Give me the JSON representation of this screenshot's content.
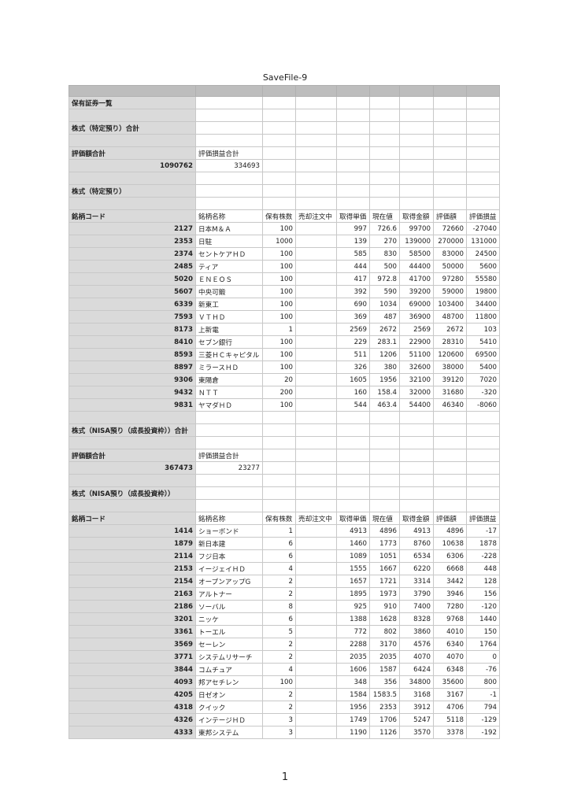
{
  "title": "SaveFile-9",
  "page_number": "1",
  "colors": {
    "header_gray": "#bdbdbd",
    "first_column_gray": "#dadada",
    "grid": "#c8c8c8"
  },
  "column_headers": [
    "銘柄コード",
    "銘柄名称",
    "保有株数",
    "売却注文中",
    "取得単価",
    "現在値",
    "取得金額",
    "評価額",
    "評価損益"
  ],
  "list_title": "保有証券一覧",
  "tokutei": {
    "total_label": "株式（特定預り）合計",
    "value_label": "評価額合計",
    "pl_label": "評価損益合計",
    "value_total": "1090762",
    "pl_total": "334693",
    "section_label": "株式（特定預り）",
    "rows": [
      [
        "2127",
        "日本M＆Ａ",
        "100",
        "",
        "997",
        "726.6",
        "99700",
        "72660",
        "-27040"
      ],
      [
        "2353",
        "日駐",
        "1000",
        "",
        "139",
        "270",
        "139000",
        "270000",
        "131000"
      ],
      [
        "2374",
        "セントケアＨＤ",
        "100",
        "",
        "585",
        "830",
        "58500",
        "83000",
        "24500"
      ],
      [
        "2485",
        "ティア",
        "100",
        "",
        "444",
        "500",
        "44400",
        "50000",
        "5600"
      ],
      [
        "5020",
        "ＥＮＥＯＳ",
        "100",
        "",
        "417",
        "972.8",
        "41700",
        "97280",
        "55580"
      ],
      [
        "5607",
        "中央可鍛",
        "100",
        "",
        "392",
        "590",
        "39200",
        "59000",
        "19800"
      ],
      [
        "6339",
        "新東工",
        "100",
        "",
        "690",
        "1034",
        "69000",
        "103400",
        "34400"
      ],
      [
        "7593",
        "ＶＴＨＤ",
        "100",
        "",
        "369",
        "487",
        "36900",
        "48700",
        "11800"
      ],
      [
        "8173",
        "上新電",
        "1",
        "",
        "2569",
        "2672",
        "2569",
        "2672",
        "103"
      ],
      [
        "8410",
        "セブン銀行",
        "100",
        "",
        "229",
        "283.1",
        "22900",
        "28310",
        "5410"
      ],
      [
        "8593",
        "三菱ＨＣキャピタル",
        "100",
        "",
        "511",
        "1206",
        "51100",
        "120600",
        "69500"
      ],
      [
        "8897",
        "ミラースＨＤ",
        "100",
        "",
        "326",
        "380",
        "32600",
        "38000",
        "5400"
      ],
      [
        "9306",
        "東陽倉",
        "20",
        "",
        "1605",
        "1956",
        "32100",
        "39120",
        "7020"
      ],
      [
        "9432",
        "ＮＴＴ",
        "200",
        "",
        "160",
        "158.4",
        "32000",
        "31680",
        "-320"
      ],
      [
        "9831",
        "ヤマダＨＤ",
        "100",
        "",
        "544",
        "463.4",
        "54400",
        "46340",
        "-8060"
      ]
    ]
  },
  "nisa": {
    "total_label": "株式（NISA預り（成長投資枠））合計",
    "value_label": "評価額合計",
    "pl_label": "評価損益合計",
    "value_total": "367473",
    "pl_total": "23277",
    "section_label": "株式（NISA預り（成長投資枠））",
    "rows": [
      [
        "1414",
        "ショーボンド",
        "1",
        "",
        "4913",
        "4896",
        "4913",
        "4896",
        "-17"
      ],
      [
        "1879",
        "新日本建",
        "6",
        "",
        "1460",
        "1773",
        "8760",
        "10638",
        "1878"
      ],
      [
        "2114",
        "フジ日本",
        "6",
        "",
        "1089",
        "1051",
        "6534",
        "6306",
        "-228"
      ],
      [
        "2153",
        "イージェイＨＤ",
        "4",
        "",
        "1555",
        "1667",
        "6220",
        "6668",
        "448"
      ],
      [
        "2154",
        "オープンアップG",
        "2",
        "",
        "1657",
        "1721",
        "3314",
        "3442",
        "128"
      ],
      [
        "2163",
        "アルトナー",
        "2",
        "",
        "1895",
        "1973",
        "3790",
        "3946",
        "156"
      ],
      [
        "2186",
        "ソーバル",
        "8",
        "",
        "925",
        "910",
        "7400",
        "7280",
        "-120"
      ],
      [
        "3201",
        "ニッケ",
        "6",
        "",
        "1388",
        "1628",
        "8328",
        "9768",
        "1440"
      ],
      [
        "3361",
        "トーエル",
        "5",
        "",
        "772",
        "802",
        "3860",
        "4010",
        "150"
      ],
      [
        "3569",
        "セーレン",
        "2",
        "",
        "2288",
        "3170",
        "4576",
        "6340",
        "1764"
      ],
      [
        "3771",
        "システムリサーチ",
        "2",
        "",
        "2035",
        "2035",
        "4070",
        "4070",
        "0"
      ],
      [
        "3844",
        "コムチュア",
        "4",
        "",
        "1606",
        "1587",
        "6424",
        "6348",
        "-76"
      ],
      [
        "4093",
        "邦アセチレン",
        "100",
        "",
        "348",
        "356",
        "34800",
        "35600",
        "800"
      ],
      [
        "4205",
        "日ゼオン",
        "2",
        "",
        "1584",
        "1583.5",
        "3168",
        "3167",
        "-1"
      ],
      [
        "4318",
        "クイック",
        "2",
        "",
        "1956",
        "2353",
        "3912",
        "4706",
        "794"
      ],
      [
        "4326",
        "インテージＨＤ",
        "3",
        "",
        "1749",
        "1706",
        "5247",
        "5118",
        "-129"
      ],
      [
        "4333",
        "東邦システム",
        "3",
        "",
        "1190",
        "1126",
        "3570",
        "3378",
        "-192"
      ]
    ]
  }
}
